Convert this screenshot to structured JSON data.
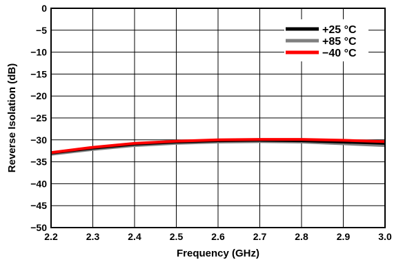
{
  "chart_data": {
    "type": "line",
    "title": "",
    "xlabel": "Frequency (GHz)",
    "ylabel": "Reverse Isolation (dB)",
    "xlim": [
      2.2,
      3.0
    ],
    "ylim": [
      -50,
      0
    ],
    "x_ticks": [
      "2.2",
      "2.3",
      "2.4",
      "2.5",
      "2.6",
      "2.7",
      "2.8",
      "2.9",
      "3.0"
    ],
    "y_ticks": [
      "0",
      "−5",
      "−10",
      "−15",
      "−20",
      "−25",
      "−30",
      "−35",
      "−40",
      "−45",
      "−50"
    ],
    "grid": true,
    "legend_position": "top-right",
    "x": [
      2.2,
      2.3,
      2.4,
      2.5,
      2.6,
      2.7,
      2.8,
      2.9,
      3.0
    ],
    "series": [
      {
        "name": "+25 °C",
        "color": "#000000",
        "values": [
          -33.0,
          -31.9,
          -31.0,
          -30.5,
          -30.2,
          -30.1,
          -30.2,
          -30.5,
          -30.8
        ]
      },
      {
        "name": "+85 °C",
        "color": "#808080",
        "values": [
          -33.3,
          -32.2,
          -31.3,
          -30.8,
          -30.5,
          -30.4,
          -30.5,
          -30.9,
          -31.3
        ]
      },
      {
        "name": "−40 °C",
        "color": "#ff0000",
        "values": [
          -32.9,
          -31.7,
          -30.8,
          -30.3,
          -30.0,
          -29.9,
          -29.9,
          -30.1,
          -30.4
        ]
      }
    ]
  }
}
